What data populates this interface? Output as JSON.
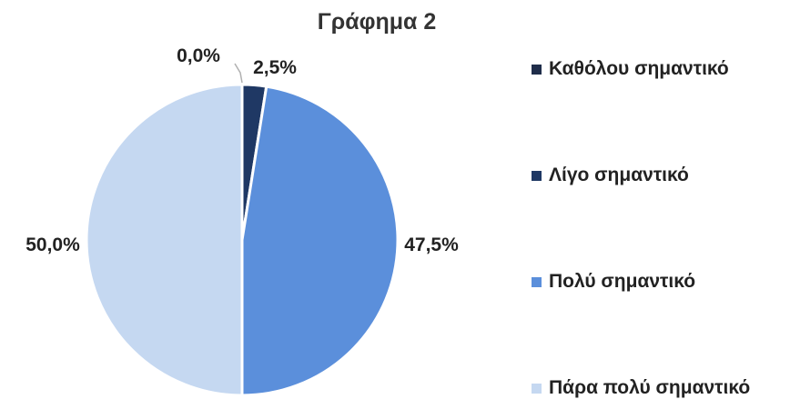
{
  "chart_data": {
    "type": "pie",
    "title": "Γράφημα 2",
    "categories": [
      "Καθόλου σημαντικό",
      "Λίγο σημαντικό",
      "Πολύ σημαντικό",
      "Πάρα πολύ σημαντικό"
    ],
    "values": [
      0.0,
      2.5,
      47.5,
      50.0
    ],
    "data_labels": [
      "0,0%",
      "2,5%",
      "47,5%",
      "50,0%"
    ],
    "colors": [
      "#1f2d4a",
      "#1f3864",
      "#5b8fdb",
      "#c5d8f1"
    ],
    "legend_position": "right"
  }
}
